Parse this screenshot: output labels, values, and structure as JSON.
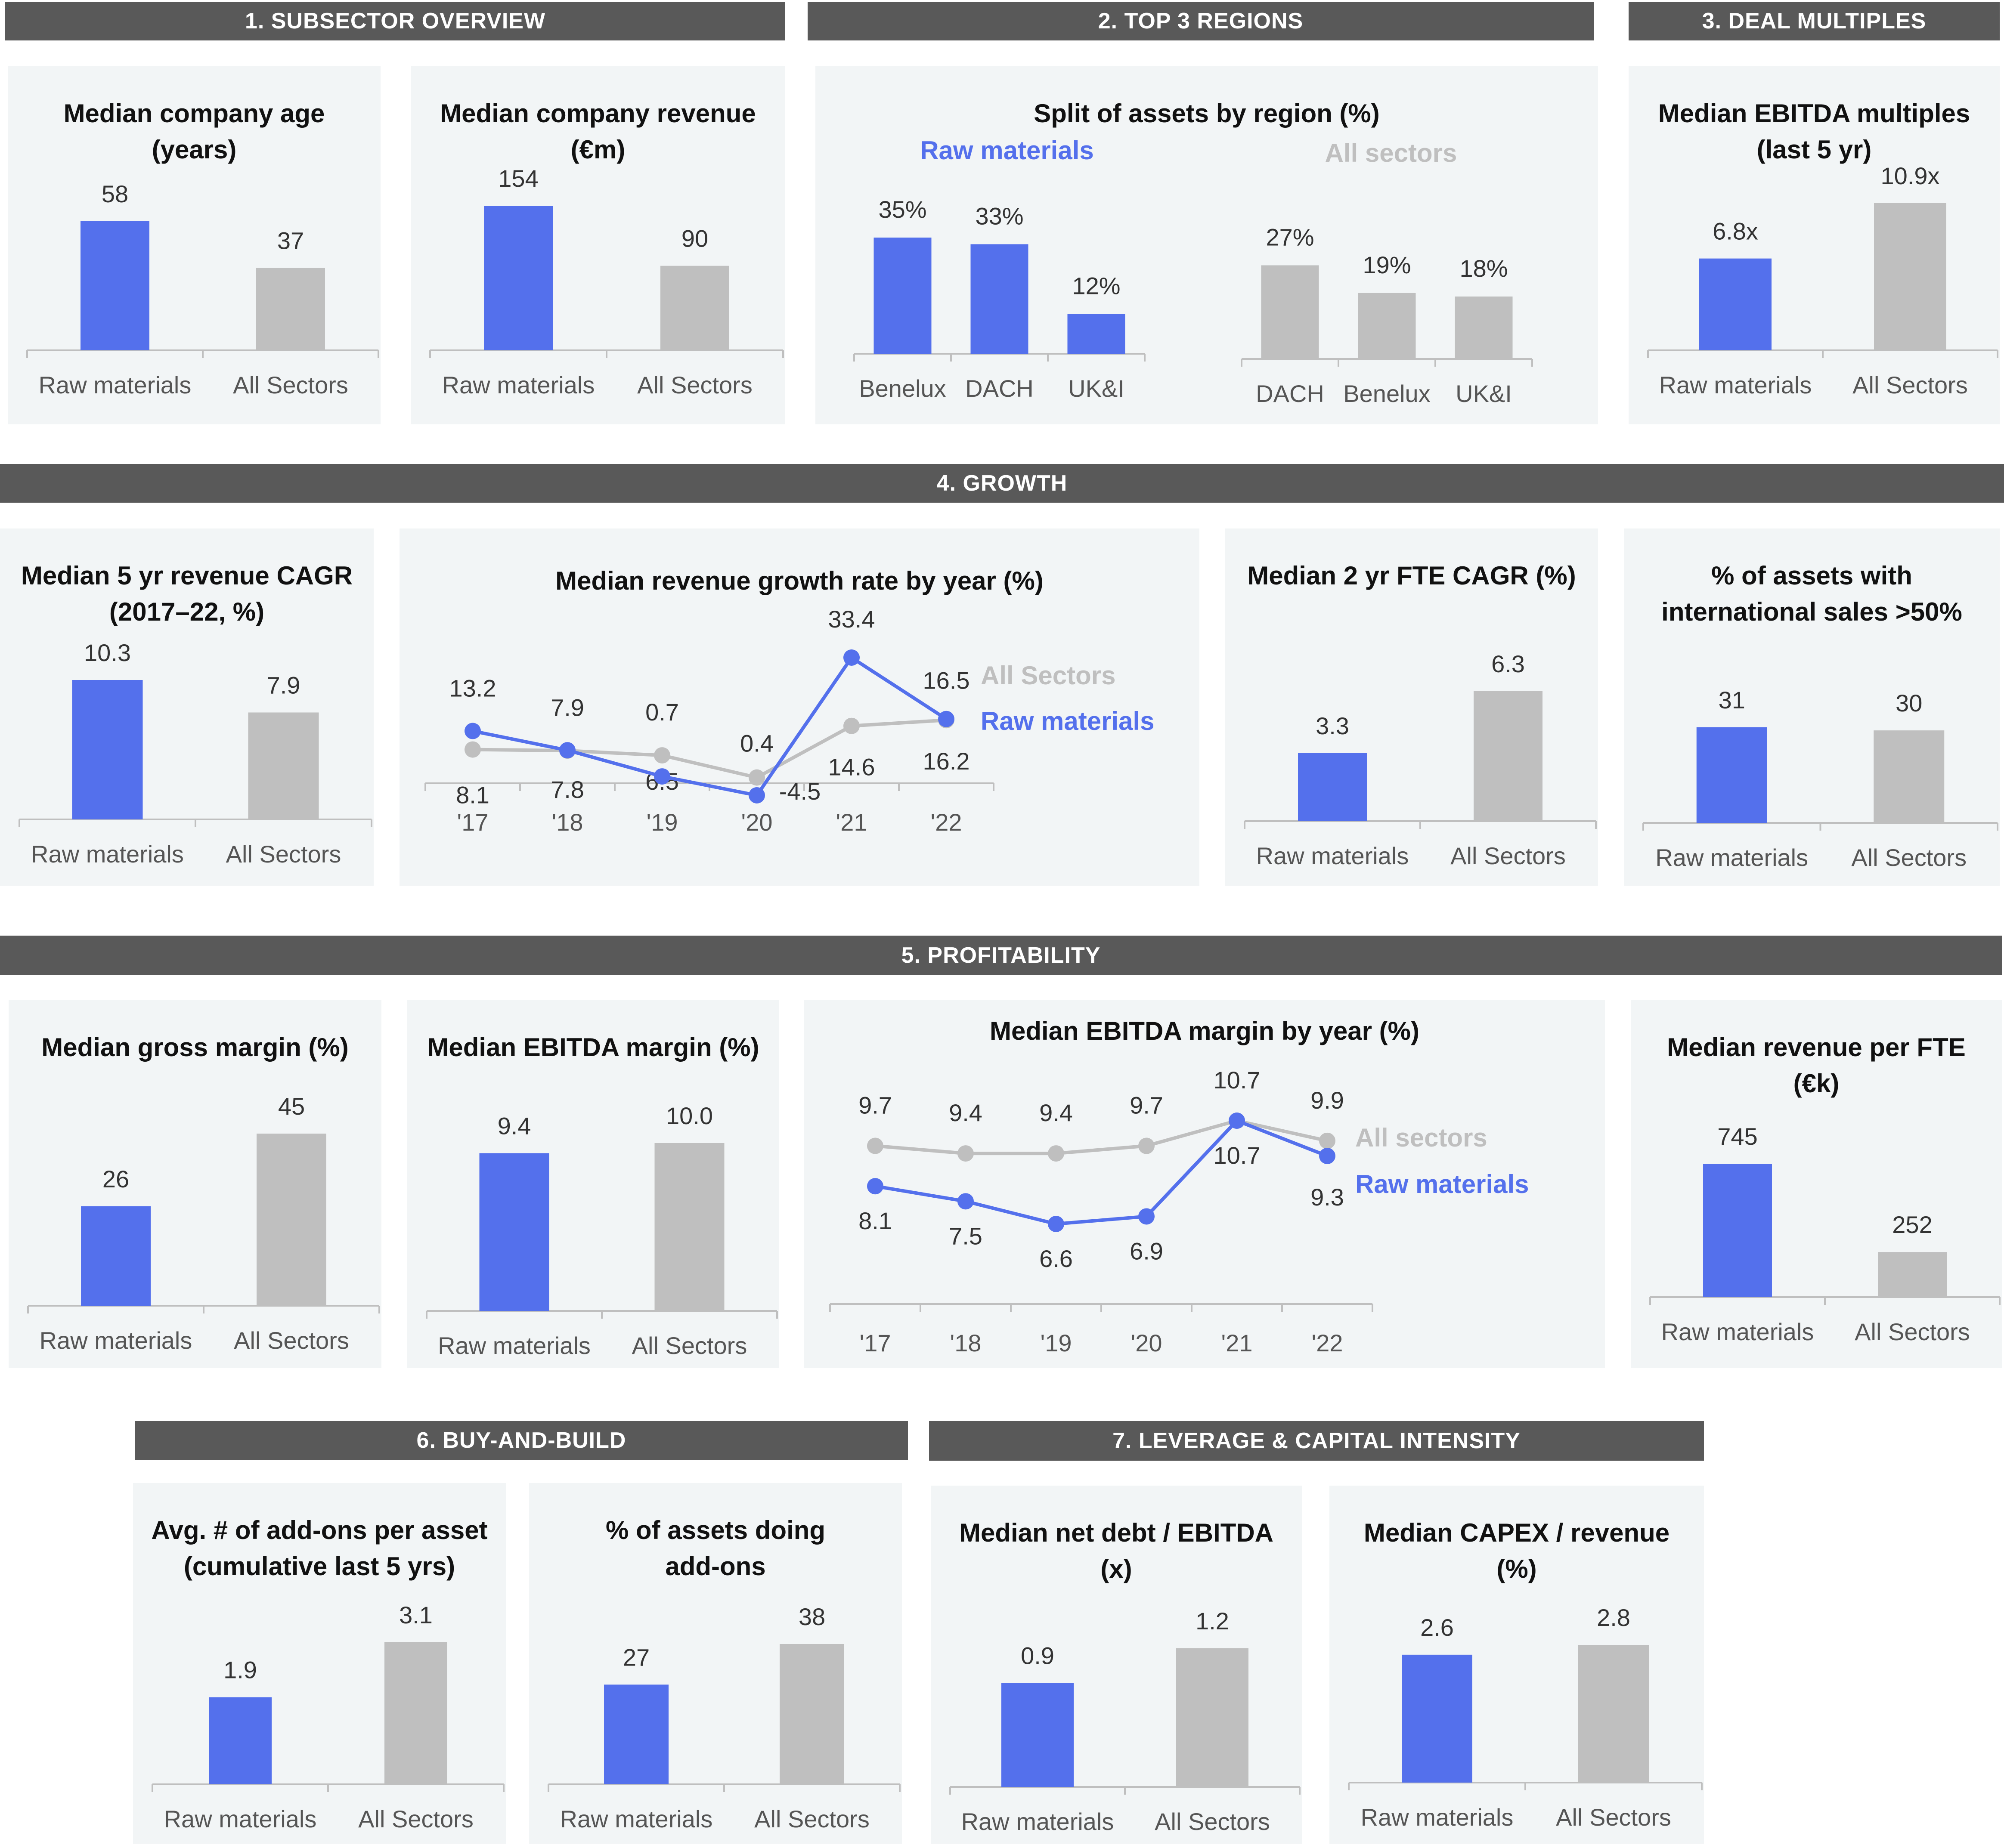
{
  "colors": {
    "primary": "#5470ec",
    "secondary": "#bfbfbf",
    "header_bg": "#595959",
    "panel_bg": "#f2f5f6"
  },
  "sections": [
    {
      "id": "s1",
      "title": "1. SUBSECTOR OVERVIEW"
    },
    {
      "id": "s2",
      "title": "2. TOP 3 REGIONS"
    },
    {
      "id": "s3",
      "title": "3. DEAL MULTIPLES"
    },
    {
      "id": "s4",
      "title": "4. GROWTH"
    },
    {
      "id": "s5",
      "title": "5.  PROFITABILITY"
    },
    {
      "id": "s6",
      "title": "6. BUY-AND-BUILD"
    },
    {
      "id": "s7",
      "title": "7. LEVERAGE & CAPITAL INTENSITY"
    }
  ],
  "chart_data": [
    {
      "id": "c1",
      "type": "bar",
      "title": [
        "Median company age",
        "(years)"
      ],
      "categories": [
        "Raw materials",
        "All Sectors"
      ],
      "values": [
        58,
        37
      ],
      "labels": [
        "58",
        "37"
      ],
      "ylim": [
        0,
        58
      ]
    },
    {
      "id": "c2",
      "type": "bar",
      "title": [
        "Median company revenue",
        "(€m)"
      ],
      "categories": [
        "Raw materials",
        "All Sectors"
      ],
      "values": [
        154,
        90
      ],
      "labels": [
        "154",
        "90"
      ],
      "ylim": [
        0,
        154
      ]
    },
    {
      "id": "c3",
      "type": "bar",
      "title": [
        "Split of assets by region (%)"
      ],
      "series": [
        {
          "name": "Raw materials",
          "categories": [
            "Benelux",
            "DACH",
            "UK&I"
          ],
          "values": [
            35,
            33,
            12
          ],
          "labels": [
            "35%",
            "33%",
            "12%"
          ]
        },
        {
          "name": "All sectors",
          "categories": [
            "DACH",
            "Benelux",
            "UK&I"
          ],
          "values": [
            27,
            19,
            18
          ],
          "labels": [
            "27%",
            "19%",
            "18%"
          ]
        }
      ],
      "ylim": [
        0,
        35
      ]
    },
    {
      "id": "c4",
      "type": "bar",
      "title": [
        "Median EBITDA multiples",
        "(last 5 yr)"
      ],
      "categories": [
        "Raw materials",
        "All Sectors"
      ],
      "values": [
        6.8,
        10.9
      ],
      "labels": [
        "6.8x",
        "10.9x"
      ],
      "ylim": [
        0,
        10.9
      ]
    },
    {
      "id": "c5",
      "type": "bar",
      "title": [
        "Median 5 yr revenue CAGR",
        "(2017–22, %)"
      ],
      "categories": [
        "Raw materials",
        "All Sectors"
      ],
      "values": [
        10.3,
        7.9
      ],
      "labels": [
        "10.3",
        "7.9"
      ],
      "ylim": [
        0,
        10.3
      ]
    },
    {
      "id": "c6",
      "type": "line",
      "title": [
        "Median revenue growth rate by year (%)"
      ],
      "x": [
        "'17",
        "'18",
        "'19",
        "'20",
        "'21",
        "'22"
      ],
      "series": [
        {
          "name": "All Sectors",
          "values": [
            8.1,
            7.8,
            6.5,
            0.4,
            14.6,
            16.2
          ],
          "labels": [
            "8.1",
            "7.8",
            "6.5",
            "0.4",
            "14.6",
            "16.2"
          ]
        },
        {
          "name": "Raw materials",
          "values": [
            13.2,
            7.9,
            0.7,
            -4.5,
            33.4,
            16.5
          ],
          "labels": [
            "13.2",
            "7.9",
            "0.7",
            "-4.5",
            "33.4",
            "16.5"
          ]
        }
      ],
      "ylim": [
        -4.5,
        33.4
      ]
    },
    {
      "id": "c7",
      "type": "bar",
      "title": [
        "Median 2 yr FTE CAGR (%)"
      ],
      "categories": [
        "Raw materials",
        "All Sectors"
      ],
      "values": [
        3.3,
        6.3
      ],
      "labels": [
        "3.3",
        "6.3"
      ],
      "ylim": [
        0,
        6.3
      ]
    },
    {
      "id": "c8",
      "type": "bar",
      "title": [
        "% of assets with",
        "international sales >50%"
      ],
      "categories": [
        "Raw materials",
        "All Sectors"
      ],
      "values": [
        31,
        30
      ],
      "labels": [
        "31",
        "30"
      ],
      "ylim": [
        0,
        31
      ]
    },
    {
      "id": "c9",
      "type": "bar",
      "title": [
        "Median gross margin (%)"
      ],
      "categories": [
        "Raw materials",
        "All Sectors"
      ],
      "values": [
        26,
        45
      ],
      "labels": [
        "26",
        "45"
      ],
      "ylim": [
        0,
        45
      ]
    },
    {
      "id": "c10",
      "type": "bar",
      "title": [
        "Median EBITDA margin (%)"
      ],
      "categories": [
        "Raw materials",
        "All Sectors"
      ],
      "values": [
        9.4,
        10.0
      ],
      "labels": [
        "9.4",
        "10.0"
      ],
      "ylim": [
        0,
        10
      ]
    },
    {
      "id": "c11",
      "type": "line",
      "title": [
        "Median EBITDA margin by year (%)"
      ],
      "x": [
        "'17",
        "'18",
        "'19",
        "'20",
        "'21",
        "'22"
      ],
      "series": [
        {
          "name": "All sectors",
          "values": [
            9.7,
            9.4,
            9.4,
            9.7,
            10.7,
            9.9
          ],
          "labels": [
            "9.7",
            "9.4",
            "9.4",
            "9.7",
            "10.7",
            "9.9"
          ]
        },
        {
          "name": "Raw materials",
          "values": [
            8.1,
            7.5,
            6.6,
            6.9,
            10.7,
            9.3
          ],
          "labels": [
            "8.1",
            "7.5",
            "6.6",
            "6.9",
            "10.7",
            "9.3"
          ]
        }
      ],
      "ylim": [
        6.6,
        10.7
      ]
    },
    {
      "id": "c12",
      "type": "bar",
      "title": [
        "Median revenue per FTE",
        "(€k)"
      ],
      "categories": [
        "Raw materials",
        "All Sectors"
      ],
      "values": [
        745,
        252
      ],
      "labels": [
        "745",
        "252"
      ],
      "ylim": [
        0,
        745
      ]
    },
    {
      "id": "c13",
      "type": "bar",
      "title": [
        "Avg. # of add-ons per asset",
        "(cumulative last 5 yrs)"
      ],
      "categories": [
        "Raw materials",
        "All Sectors"
      ],
      "values": [
        1.9,
        3.1
      ],
      "labels": [
        "1.9",
        "3.1"
      ],
      "ylim": [
        0,
        3.1
      ]
    },
    {
      "id": "c14",
      "type": "bar",
      "title": [
        "% of assets doing",
        "add-ons"
      ],
      "categories": [
        "Raw materials",
        "All Sectors"
      ],
      "values": [
        27,
        38
      ],
      "labels": [
        "27",
        "38"
      ],
      "ylim": [
        0,
        38
      ]
    },
    {
      "id": "c15",
      "type": "bar",
      "title": [
        "Median net debt / EBITDA",
        "(x)"
      ],
      "categories": [
        "Raw materials",
        "All Sectors"
      ],
      "values": [
        0.9,
        1.2
      ],
      "labels": [
        "0.9",
        "1.2"
      ],
      "ylim": [
        0,
        1.2
      ]
    },
    {
      "id": "c16",
      "type": "bar",
      "title": [
        "Median CAPEX / revenue",
        "(%)"
      ],
      "categories": [
        "Raw materials",
        "All Sectors"
      ],
      "values": [
        2.6,
        2.8
      ],
      "labels": [
        "2.6",
        "2.8"
      ],
      "ylim": [
        0,
        2.8
      ]
    }
  ]
}
